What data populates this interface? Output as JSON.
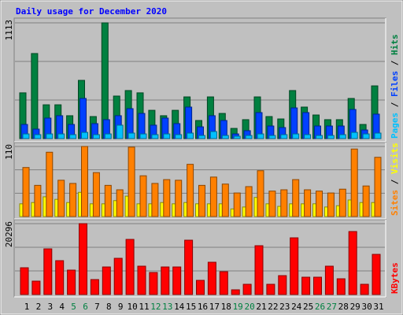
{
  "chart_data": {
    "type": "bar",
    "title": "Daily usage for December 2020",
    "categories": [
      "1",
      "2",
      "3",
      "4",
      "5",
      "6",
      "7",
      "8",
      "9",
      "10",
      "11",
      "12",
      "13",
      "14",
      "15",
      "16",
      "17",
      "18",
      "19",
      "20",
      "21",
      "22",
      "23",
      "24",
      "25",
      "26",
      "27",
      "28",
      "29",
      "30",
      "31"
    ],
    "category_colors": [
      "#000000",
      "#000000",
      "#000000",
      "#000000",
      "#008040",
      "#008040",
      "#000000",
      "#000000",
      "#000000",
      "#000000",
      "#000000",
      "#008040",
      "#008040",
      "#000000",
      "#000000",
      "#000000",
      "#000000",
      "#000000",
      "#008040",
      "#008040",
      "#000000",
      "#000000",
      "#000000",
      "#000000",
      "#000000",
      "#008040",
      "#008040",
      "#000000",
      "#000000",
      "#000000",
      "#000000"
    ],
    "panels": [
      {
        "ylim": [
          0,
          1113
        ],
        "yticks": [
          1113
        ],
        "series": [
          {
            "name": "Hits",
            "color": "#008040",
            "values": [
              440,
              818,
              325,
              325,
              220,
              560,
              212,
              1113,
              409,
              462,
              440,
              272,
              220,
              272,
              401,
              174,
              401,
              242,
              98,
              182,
              401,
              212,
              189,
              462,
              303,
              227,
              182,
              182,
              386,
              136,
              507
            ]
          },
          {
            "name": "Files",
            "color": "#0040ff",
            "values": [
              136,
              91,
              197,
              220,
              136,
              386,
              144,
              182,
              220,
              288,
              242,
              129,
              197,
              144,
              303,
              113,
              220,
              174,
              45,
              76,
              250,
              121,
              106,
              295,
              250,
              121,
              121,
              121,
              280,
              83,
              235
            ]
          },
          {
            "name": "Pages",
            "color": "#00c0ff",
            "values": [
              45,
              38,
              45,
              45,
              38,
              60,
              38,
              45,
              129,
              53,
              45,
              38,
              45,
              38,
              53,
              30,
              68,
              30,
              23,
              30,
              45,
              30,
              38,
              45,
              38,
              30,
              30,
              38,
              60,
              45,
              53
            ]
          }
        ]
      },
      {
        "ylim": [
          0,
          110
        ],
        "yticks": [
          110
        ],
        "series": [
          {
            "name": "Visits",
            "color": "#ffff00",
            "values": [
              20,
              22,
              31,
              27,
              22,
              38,
              20,
              20,
              25,
              32,
              20,
              20,
              22,
              20,
              22,
              20,
              20,
              20,
              12,
              15,
              30,
              20,
              16,
              20,
              20,
              20,
              15,
              17,
              26,
              22,
              22
            ]
          },
          {
            "name": "Sites",
            "color": "#ff8000",
            "values": [
              77,
              49,
              101,
              57,
              52,
              110,
              69,
              49,
              42,
              109,
              64,
              52,
              58,
              57,
              82,
              49,
              62,
              51,
              37,
              47,
              72,
              40,
              42,
              58,
              42,
              40,
              37,
              43,
              106,
              48,
              93
            ]
          }
        ]
      },
      {
        "ylim": [
          0,
          20296
        ],
        "yticks": [
          20296
        ],
        "series": [
          {
            "name": "KBytes",
            "color": "#ff0000",
            "values": [
              7667,
              3834,
              13080,
              9697,
              6991,
              20296,
              4285,
              7893,
              10373,
              15786,
              8118,
              6314,
              7893,
              7893,
              15560,
              4059,
              9246,
              6540,
              1353,
              2932,
              13982,
              2932,
              5412,
              16237,
              4961,
              4961,
              8118,
              4510,
              18040,
              2932,
              11501
            ]
          }
        ]
      }
    ]
  }
}
